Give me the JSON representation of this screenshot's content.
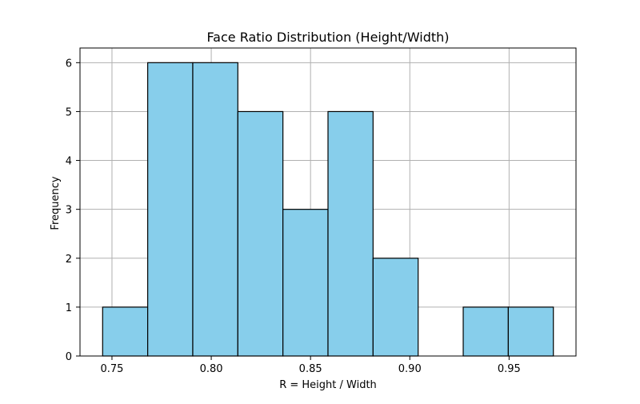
{
  "chart_data": {
    "type": "bar",
    "subtype": "histogram",
    "title": "Face Ratio Distribution (Height/Width)",
    "xlabel": "R = Height / Width",
    "ylabel": "Frequency",
    "bin_edges": [
      0.7453,
      0.768,
      0.7907,
      0.8134,
      0.8361,
      0.8588,
      0.8815,
      0.9042,
      0.9269,
      0.9496,
      0.9723
    ],
    "values": [
      1,
      6,
      6,
      5,
      3,
      5,
      2,
      0,
      1,
      1
    ],
    "xlim": [
      0.7339,
      0.9837
    ],
    "ylim": [
      0,
      6.3
    ],
    "xticks": [
      0.75,
      0.8,
      0.85,
      0.9,
      0.95
    ],
    "xtick_labels": [
      "0.75",
      "0.80",
      "0.85",
      "0.90",
      "0.95"
    ],
    "yticks": [
      0,
      1,
      2,
      3,
      4,
      5,
      6
    ],
    "ytick_labels": [
      "0",
      "1",
      "2",
      "3",
      "4",
      "5",
      "6"
    ],
    "grid": true,
    "colors": {
      "bar_fill": "#87ceeb",
      "bar_edge": "#000000",
      "grid": "#b0b0b0",
      "axes": "#000000"
    }
  }
}
